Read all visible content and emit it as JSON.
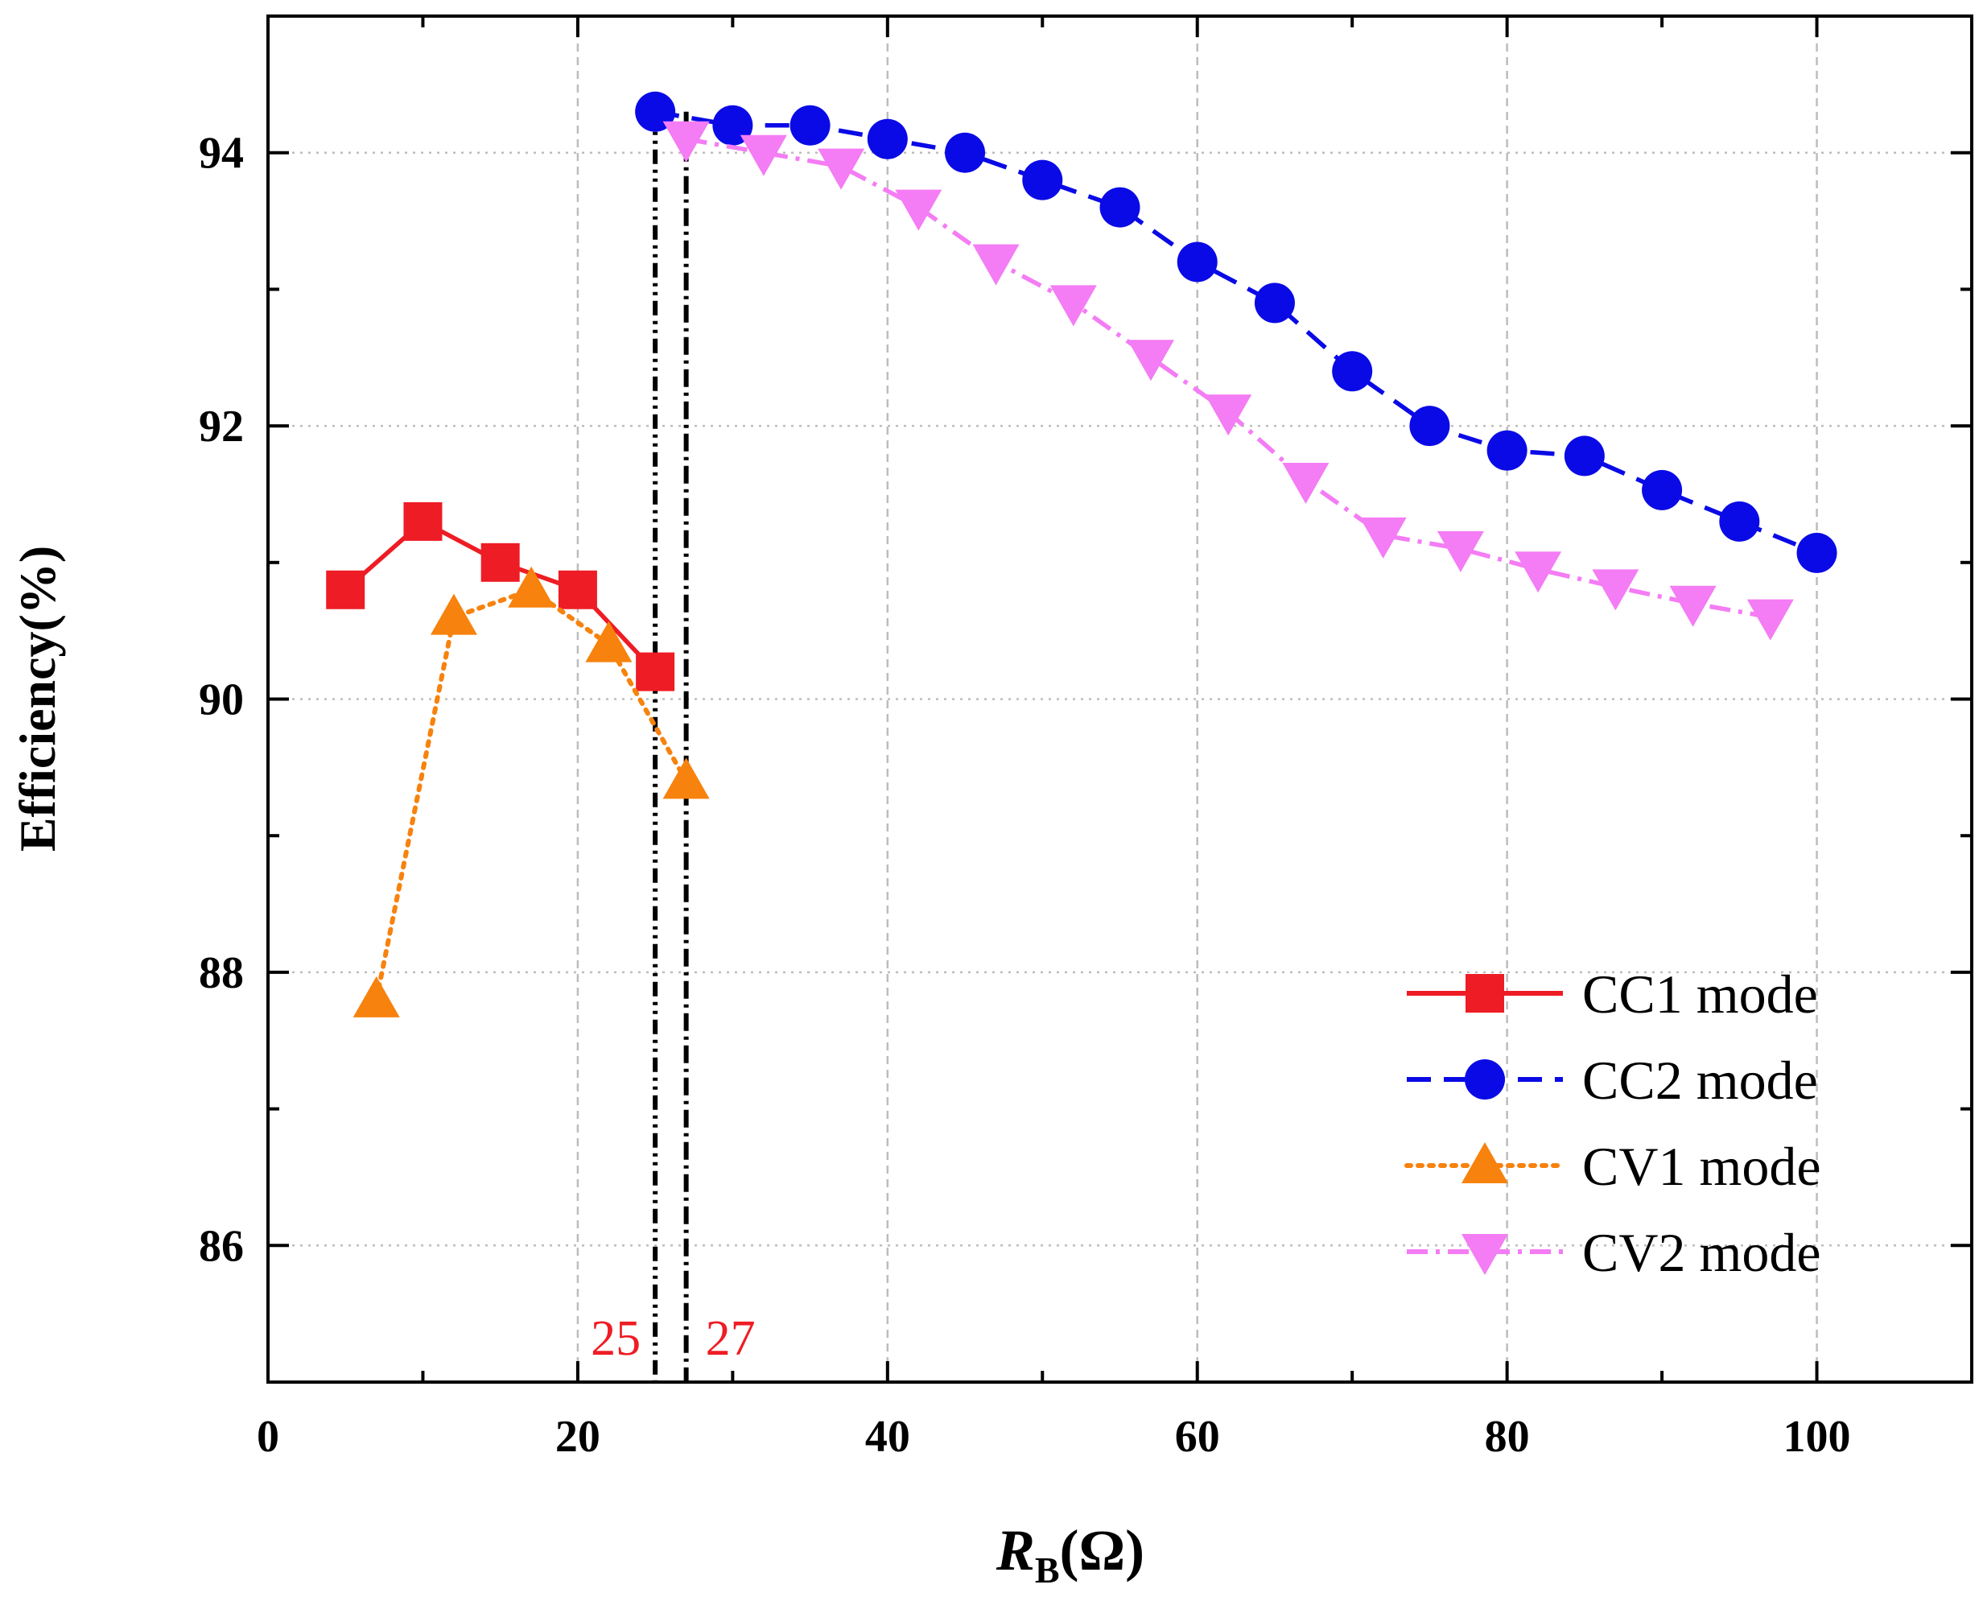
{
  "chart_data": {
    "type": "line",
    "xlabel_main": "R",
    "xlabel_sub": "B",
    "xlabel_unit": "(Ω)",
    "ylabel": "Efficiency(%)",
    "xlim": [
      0,
      110
    ],
    "ylim": [
      85,
      95
    ],
    "xticks": [
      0,
      20,
      40,
      60,
      80,
      100
    ],
    "yticks": [
      86,
      88,
      90,
      92,
      94
    ],
    "grid": true,
    "legend_position": "bottom-right",
    "series": [
      {
        "name": "CC1 mode",
        "color": "#ee1c24",
        "line": "solid",
        "marker": "square",
        "x": [
          5,
          10,
          15,
          20,
          25
        ],
        "y": [
          90.8,
          91.3,
          91.0,
          90.8,
          90.2
        ]
      },
      {
        "name": "CC2 mode",
        "color": "#0a0ae6",
        "line": "dashed",
        "marker": "circle",
        "x": [
          25,
          30,
          35,
          40,
          45,
          50,
          55,
          60,
          65,
          70,
          75,
          80,
          85,
          90,
          95,
          100
        ],
        "y": [
          94.3,
          94.2,
          94.2,
          94.1,
          94.0,
          93.8,
          93.6,
          93.2,
          92.9,
          92.4,
          92.0,
          91.82,
          91.78,
          91.53,
          91.3,
          91.07
        ]
      },
      {
        "name": "CV1 mode",
        "color": "#f7820d",
        "line": "dotted",
        "marker": "triangle-up",
        "x": [
          7,
          12,
          17,
          22,
          27
        ],
        "y": [
          87.8,
          90.6,
          90.8,
          90.4,
          89.4
        ]
      },
      {
        "name": "CV2 mode",
        "color": "#f47cf4",
        "line": "dashdot",
        "marker": "triangle-down",
        "x": [
          27,
          32,
          37,
          42,
          47,
          52,
          57,
          62,
          67,
          72,
          77,
          82,
          87,
          92,
          97
        ],
        "y": [
          94.1,
          94.0,
          93.9,
          93.6,
          93.2,
          92.9,
          92.5,
          92.1,
          91.6,
          91.2,
          91.1,
          90.95,
          90.82,
          90.7,
          90.6
        ]
      }
    ],
    "reference_lines": [
      {
        "x": 25,
        "label": "25",
        "style": "dashdot-dot",
        "color": "#000000",
        "label_color": "#ee1c24",
        "label_side": "left"
      },
      {
        "x": 27,
        "label": "27",
        "style": "dashdot",
        "color": "#000000",
        "label_color": "#ee1c24",
        "label_side": "right"
      }
    ]
  }
}
